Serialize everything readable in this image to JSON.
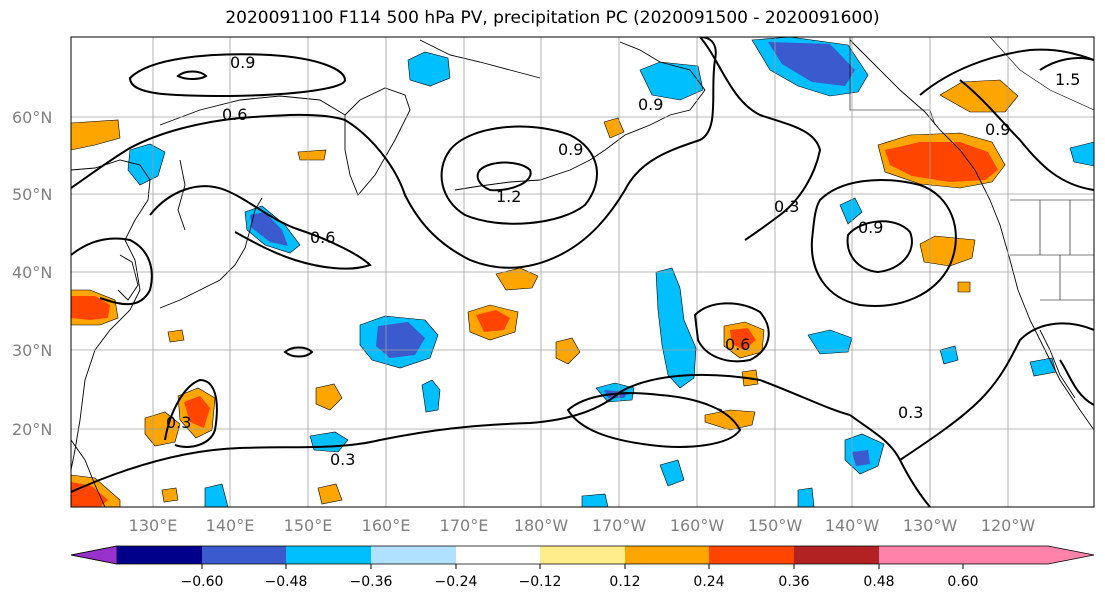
{
  "title": "2020091100 F114 500 hPa PV, precipitation PC (2020091500 - 2020091600)",
  "map": {
    "lat_labels": [
      "60°N",
      "50°N",
      "40°N",
      "30°N",
      "20°N"
    ],
    "lon_labels": [
      "130°E",
      "140°E",
      "150°E",
      "160°E",
      "170°E",
      "180°W",
      "170°W",
      "160°W",
      "150°W",
      "140°W",
      "130°W",
      "120°W"
    ],
    "contour_labels": [
      "0.9",
      "0.6",
      "0.9",
      "1.2",
      "0.9",
      "0.3",
      "0.9",
      "0.6",
      "0.3",
      "0.3",
      "0.6",
      "0.3",
      "0.9",
      "1.5"
    ]
  },
  "colorbar": {
    "ticks": [
      "−0.60",
      "−0.48",
      "−0.36",
      "−0.24",
      "−0.12",
      "0.12",
      "0.24",
      "0.36",
      "0.48",
      "0.60"
    ],
    "colors": [
      "#9932cc",
      "#00008b",
      "#3a5acd",
      "#00bfff",
      "#b0e2ff",
      "#ffffff",
      "#ffec8b",
      "#ffa500",
      "#ff4500",
      "#b22222",
      "#ff82ab"
    ]
  }
}
